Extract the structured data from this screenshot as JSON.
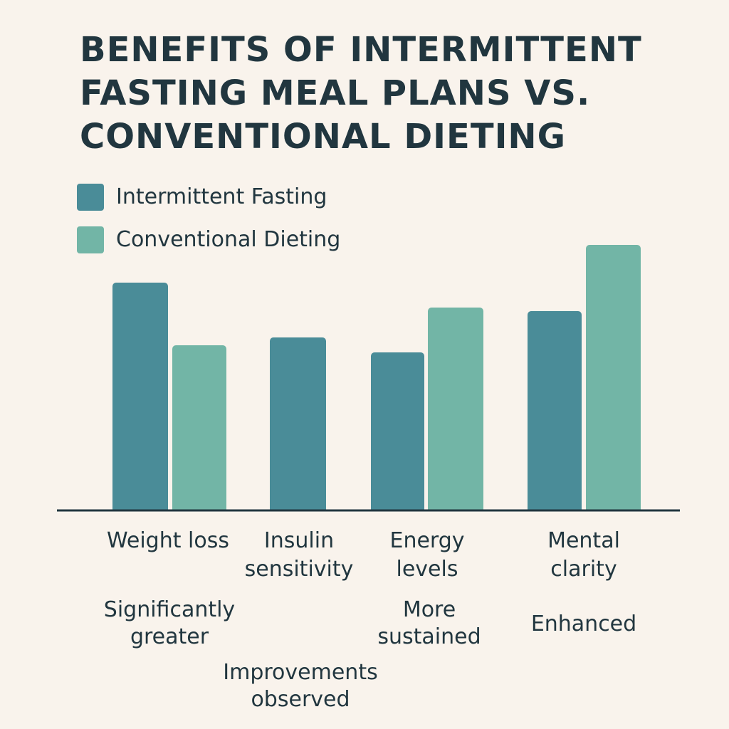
{
  "title_lines": [
    "BENEFITS OF INTERMITTENT",
    "FASTING MEAL PLANS VS.",
    "CONVENTIONAL DIETING"
  ],
  "legend": [
    {
      "label": "Intermittent Fasting",
      "color": "#4a8c98"
    },
    {
      "label": "Conventional Dieting",
      "color": "#72b5a6"
    }
  ],
  "notes": [
    "Significantly greater",
    "Improvements observed",
    "More sustained",
    "Enhanced"
  ],
  "chart_data": {
    "type": "bar",
    "categories": [
      "Weight loss",
      "Insulin sensitivity",
      "Energy levels",
      "Mental clarity"
    ],
    "series": [
      {
        "name": "Intermittent Fasting",
        "color": "#4a8c98",
        "values": [
          320,
          243,
          222,
          280
        ]
      },
      {
        "name": "Conventional Dieting",
        "color": "#72b5a6",
        "values": [
          232,
          null,
          285,
          373
        ]
      }
    ],
    "title": "BENEFITS OF INTERMITTENT FASTING MEAL PLANS VS. CONVENTIONAL DIETING",
    "xlabel": "",
    "ylabel": "",
    "ylim": [
      0,
      400
    ],
    "grid": false,
    "legend_position": "top-left"
  }
}
